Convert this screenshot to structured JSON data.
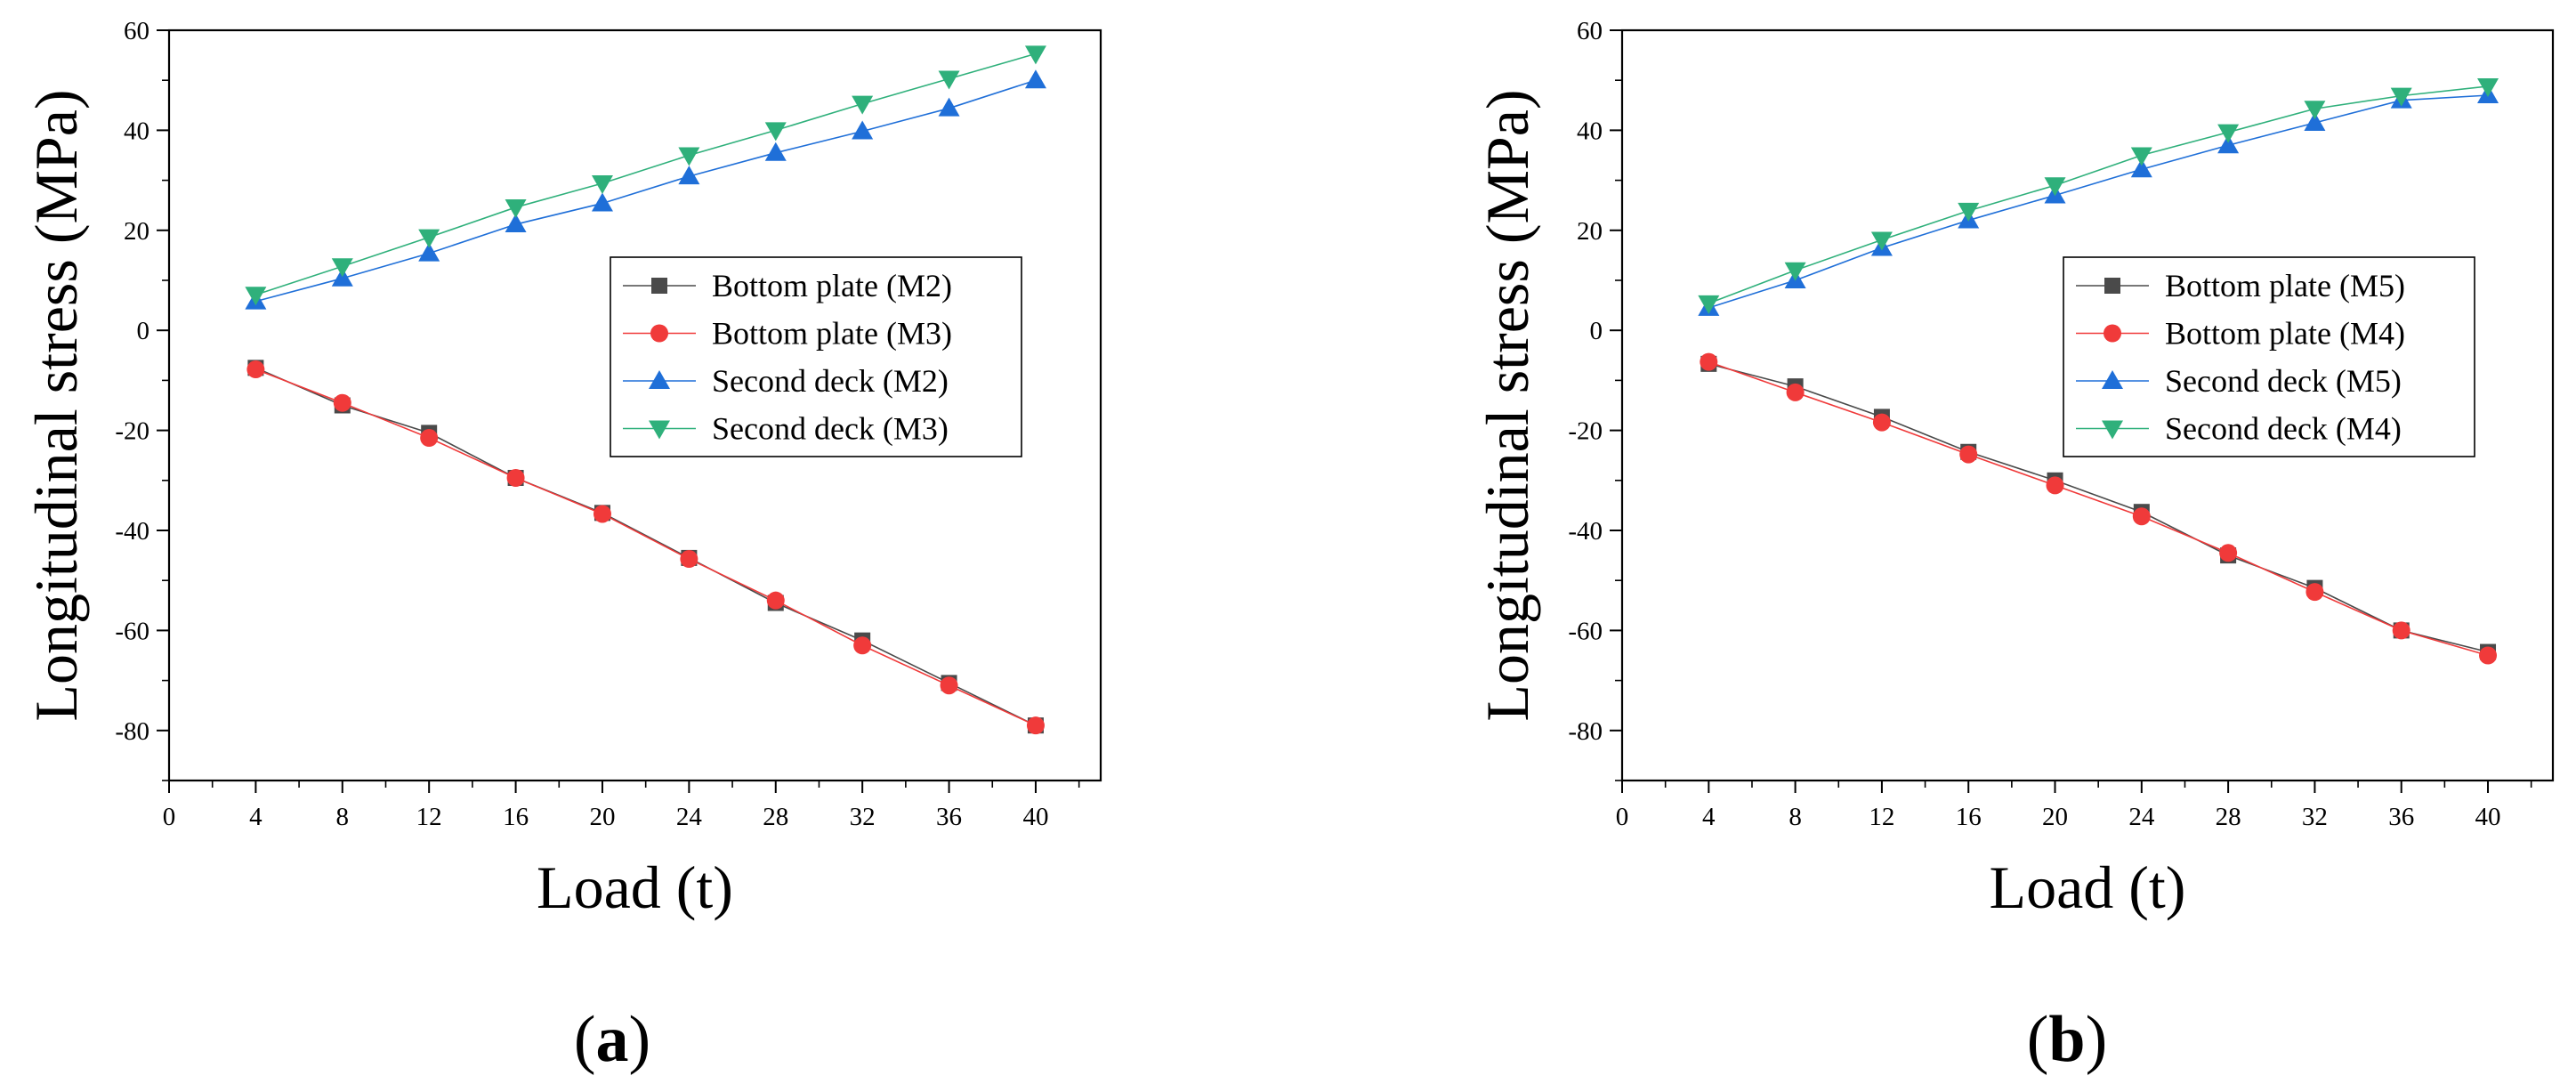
{
  "chart_data": [
    {
      "type": "line",
      "panel_label": "a",
      "xlabel": "Load (t)",
      "ylabel": "Longitudinal stress (MPa)",
      "xlim": [
        0,
        43
      ],
      "ylim": [
        -90,
        60
      ],
      "xticks": [
        0,
        4,
        8,
        12,
        16,
        20,
        24,
        28,
        32,
        36,
        40
      ],
      "yticks": [
        -80,
        -60,
        -40,
        -20,
        0,
        20,
        40,
        60
      ],
      "legend_position": "right-middle",
      "x": [
        4,
        8,
        12,
        16,
        20,
        24,
        28,
        32,
        36,
        40
      ],
      "series": [
        {
          "name": "Bottom plate (M2)",
          "marker": "square",
          "color": "#4a4a4a",
          "values": [
            -7.5,
            -15,
            -20.5,
            -29.5,
            -36.5,
            -45.5,
            -54.5,
            -62,
            -70.5,
            -79
          ]
        },
        {
          "name": "Bottom plate (M3)",
          "marker": "circle",
          "color": "#f03a3a",
          "values": [
            -7.8,
            -14.5,
            -21.5,
            -29.5,
            -36.7,
            -45.7,
            -54,
            -63,
            -71,
            -79
          ]
        },
        {
          "name": "Second deck (M2)",
          "marker": "triangle-up",
          "color": "#1f6fd8",
          "values": [
            5.8,
            10.4,
            15.4,
            21.2,
            25.4,
            30.8,
            35.5,
            39.8,
            44.4,
            50
          ]
        },
        {
          "name": "Second deck (M3)",
          "marker": "triangle-down",
          "color": "#2fb07b",
          "values": [
            7.1,
            12.8,
            18.6,
            24.6,
            29.4,
            35,
            40,
            45.3,
            50.3,
            55.3
          ]
        }
      ]
    },
    {
      "type": "line",
      "panel_label": "b",
      "xlabel": "Load (t)",
      "ylabel": "Longitudinal stress (MPa)",
      "xlim": [
        0,
        43
      ],
      "ylim": [
        -90,
        60
      ],
      "xticks": [
        0,
        4,
        8,
        12,
        16,
        20,
        24,
        28,
        32,
        36,
        40
      ],
      "yticks": [
        -80,
        -60,
        -40,
        -20,
        0,
        20,
        40,
        60
      ],
      "legend_position": "right-middle",
      "x": [
        4,
        8,
        12,
        16,
        20,
        24,
        28,
        32,
        36,
        40
      ],
      "series": [
        {
          "name": "Bottom plate (M5)",
          "marker": "square",
          "color": "#4a4a4a",
          "values": [
            -6.7,
            -11.2,
            -17.3,
            -24.3,
            -30,
            -36.3,
            -45,
            -51.5,
            -60,
            -64.3
          ]
        },
        {
          "name": "Bottom plate (M4)",
          "marker": "circle",
          "color": "#f03a3a",
          "values": [
            -6.3,
            -12.4,
            -18.4,
            -24.8,
            -31,
            -37.2,
            -44.5,
            -52.3,
            -60,
            -65
          ]
        },
        {
          "name": "Second deck (M5)",
          "marker": "triangle-up",
          "color": "#1f6fd8",
          "values": [
            4.5,
            10,
            16.5,
            22,
            27,
            32.2,
            37,
            41.5,
            46,
            47
          ]
        },
        {
          "name": "Second deck (M4)",
          "marker": "triangle-down",
          "color": "#2fb07b",
          "values": [
            5.4,
            12,
            18.1,
            23.9,
            29,
            35,
            39.6,
            44.3,
            46.9,
            48.8
          ]
        }
      ]
    }
  ]
}
